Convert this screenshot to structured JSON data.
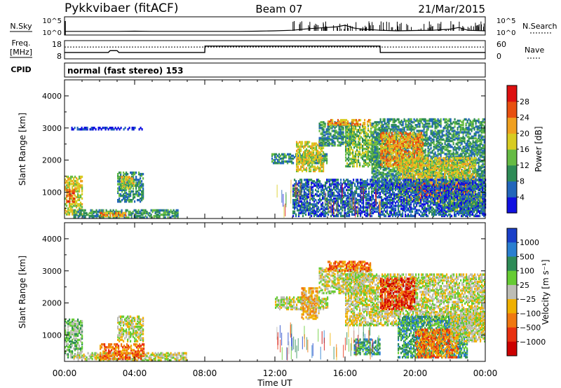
{
  "header": {
    "station": "Pykkvibaer (fitACF)",
    "beam": "Beam 07",
    "date": "21/Mar/2015"
  },
  "nsky_panel": {
    "left_label": "N.Sky",
    "left_ticks": [
      "10^5",
      "10^0"
    ],
    "right_label": "N.Search",
    "right_ticks": [
      "10^5",
      "10^0"
    ]
  },
  "freq_panel": {
    "left_label_line1": "Freq.",
    "left_label_line2": "[MHz]",
    "left_ticks": [
      "18",
      "8"
    ],
    "right_label": "Nave",
    "right_ticks": [
      "60",
      "0"
    ]
  },
  "cpid": {
    "label": "CPID",
    "text": "normal (fast stereo) 153"
  },
  "chart_data": [
    {
      "type": "heatmap",
      "name": "power",
      "xlabel": "Time UT",
      "ylabel": "Slant Range [km]",
      "xlim": [
        "00:00",
        "24:00"
      ],
      "ylim": [
        180,
        4500
      ],
      "x_ticks": [
        "00:00",
        "04:00",
        "08:00",
        "12:00",
        "16:00",
        "20:00",
        "00:00"
      ],
      "y_ticks": [
        "1000",
        "2000",
        "3000",
        "4000"
      ],
      "colorbar": {
        "label": "Power [dB]",
        "ticks": [
          "4",
          "8",
          "12",
          "16",
          "20",
          "24",
          "28"
        ],
        "colors": [
          "#1010e0",
          "#2266bb",
          "#2e8b57",
          "#66bb44",
          "#d8cc22",
          "#f0a020",
          "#e85010",
          "#dd1010"
        ]
      },
      "regions": [
        {
          "t0": 0.0,
          "t1": 1.0,
          "r0": 300,
          "r1": 1500,
          "level": 4
        },
        {
          "t0": 0.1,
          "t1": 0.6,
          "r0": 700,
          "r1": 1100,
          "level": 6
        },
        {
          "t0": 0.5,
          "t1": 6.5,
          "r0": 200,
          "r1": 450,
          "level": 2
        },
        {
          "t0": 2.0,
          "t1": 3.5,
          "r0": 250,
          "r1": 400,
          "level": 5
        },
        {
          "t0": 3.0,
          "t1": 4.5,
          "r0": 700,
          "r1": 1650,
          "level": 2
        },
        {
          "t0": 3.2,
          "t1": 4.0,
          "r0": 1100,
          "r1": 1500,
          "level": 4
        },
        {
          "t0": 0.3,
          "t1": 4.5,
          "r0": 2950,
          "r1": 3050,
          "level": 0
        },
        {
          "t0": 11.8,
          "t1": 15.0,
          "r0": 1900,
          "r1": 2200,
          "level": 2
        },
        {
          "t0": 13.2,
          "t1": 14.8,
          "r0": 1650,
          "r1": 2600,
          "level": 4
        },
        {
          "t0": 14.5,
          "t1": 16.5,
          "r0": 2450,
          "r1": 3200,
          "level": 2
        },
        {
          "t0": 16.0,
          "t1": 18.2,
          "r0": 1800,
          "r1": 3100,
          "level": 3
        },
        {
          "t0": 17.5,
          "t1": 24.0,
          "r0": 1100,
          "r1": 3300,
          "level": 2
        },
        {
          "t0": 18.0,
          "t1": 20.5,
          "r0": 1800,
          "r1": 2900,
          "level": 5
        },
        {
          "t0": 19.0,
          "t1": 23.5,
          "r0": 700,
          "r1": 2100,
          "level": 4
        },
        {
          "t0": 20.0,
          "t1": 23.0,
          "r0": 800,
          "r1": 1300,
          "level": 6
        },
        {
          "t0": 21.5,
          "t1": 24.0,
          "r0": 400,
          "r1": 1000,
          "level": 3
        },
        {
          "t0": 13.0,
          "t1": 24.0,
          "r0": 250,
          "r1": 1400,
          "level": 1
        },
        {
          "t0": 15.0,
          "t1": 17.5,
          "r0": 3100,
          "r1": 3300,
          "level": 5
        }
      ]
    },
    {
      "type": "heatmap",
      "name": "velocity",
      "xlabel": "Time UT",
      "ylabel": "Slant Range [km]",
      "xlim": [
        "00:00",
        "24:00"
      ],
      "ylim": [
        180,
        4500
      ],
      "x_ticks": [
        "00:00",
        "04:00",
        "08:00",
        "12:00",
        "16:00",
        "20:00",
        "00:00"
      ],
      "y_ticks": [
        "1000",
        "2000",
        "3000",
        "4000"
      ],
      "colorbar": {
        "label": "Velocity [m s⁻¹]",
        "ticks": [
          "1000",
          "500",
          "100",
          "25",
          "−25",
          "−100",
          "−500",
          "−1000"
        ],
        "colors": [
          "#1a3fc8",
          "#2a7fd0",
          "#2e8b57",
          "#66cc33",
          "#bdbdb5",
          "#f0b000",
          "#f07810",
          "#e83010",
          "#cc0000"
        ]
      },
      "regions": [
        {
          "t0": 0.0,
          "t1": 1.0,
          "r0": 300,
          "r1": 1500,
          "level": 3
        },
        {
          "t0": 0.5,
          "t1": 7.0,
          "r0": 200,
          "r1": 450,
          "level": 4
        },
        {
          "t0": 2.0,
          "t1": 4.6,
          "r0": 250,
          "r1": 750,
          "level": 6
        },
        {
          "t0": 3.0,
          "t1": 4.5,
          "r0": 800,
          "r1": 1600,
          "level": 4
        },
        {
          "t0": 12.0,
          "t1": 15.0,
          "r0": 1800,
          "r1": 2200,
          "level": 4
        },
        {
          "t0": 13.5,
          "t1": 14.5,
          "r0": 1500,
          "r1": 2500,
          "level": 5
        },
        {
          "t0": 14.5,
          "t1": 17.5,
          "r0": 2300,
          "r1": 3100,
          "level": 4
        },
        {
          "t0": 16.0,
          "t1": 24.0,
          "r0": 1300,
          "r1": 2900,
          "level": 4
        },
        {
          "t0": 18.0,
          "t1": 20.0,
          "r0": 1800,
          "r1": 2800,
          "level": 7
        },
        {
          "t0": 19.0,
          "t1": 23.0,
          "r0": 300,
          "r1": 1600,
          "level": 2
        },
        {
          "t0": 20.0,
          "t1": 22.5,
          "r0": 300,
          "r1": 1200,
          "level": 6
        },
        {
          "t0": 22.0,
          "t1": 24.0,
          "r0": 800,
          "r1": 1700,
          "level": 4
        },
        {
          "t0": 15.0,
          "t1": 17.5,
          "r0": 3000,
          "r1": 3300,
          "level": 6
        },
        {
          "t0": 16.5,
          "t1": 18.0,
          "r0": 400,
          "r1": 900,
          "level": 2
        }
      ]
    }
  ],
  "traces": {
    "nsky": [
      [
        0.0,
        0.2
      ],
      [
        1,
        0.2
      ],
      [
        2,
        0.2
      ],
      [
        3,
        0.2
      ],
      [
        4,
        0.22
      ],
      [
        5,
        0.2
      ],
      [
        6,
        0.2
      ],
      [
        7,
        0.2
      ],
      [
        8,
        0.2
      ],
      [
        9,
        0.2
      ],
      [
        10,
        0.2
      ],
      [
        11,
        0.22
      ],
      [
        12,
        0.25
      ],
      [
        13,
        0.3
      ],
      [
        14,
        0.45
      ],
      [
        15,
        0.55
      ],
      [
        15.5,
        0.6
      ],
      [
        16,
        0.75
      ],
      [
        16.5,
        0.5
      ],
      [
        17,
        0.4
      ],
      [
        18,
        0.3
      ],
      [
        19,
        0.25
      ],
      [
        20,
        0.28
      ],
      [
        21,
        0.3
      ],
      [
        22,
        0.4
      ],
      [
        22.5,
        0.55
      ],
      [
        23,
        0.3
      ],
      [
        24,
        0.25
      ]
    ],
    "freq": [
      [
        0,
        0.65
      ],
      [
        2.5,
        0.65
      ],
      [
        2.6,
        0.55
      ],
      [
        3.0,
        0.55
      ],
      [
        3.1,
        0.65
      ],
      [
        8.0,
        0.65
      ],
      [
        8.01,
        0.3
      ],
      [
        18.0,
        0.3
      ],
      [
        18.01,
        0.65
      ],
      [
        24,
        0.65
      ]
    ],
    "nave": 0.35
  }
}
